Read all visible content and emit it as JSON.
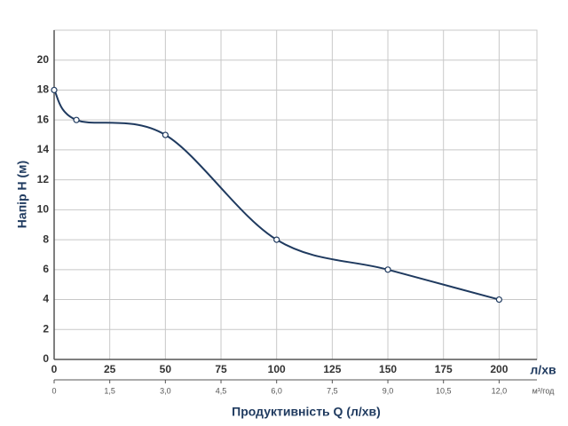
{
  "chart_data": {
    "type": "line",
    "ylabel": "Напір H (м)",
    "xlabel": "Продуктивність Q (л/хв)",
    "x_unit": "л/хв",
    "x2_unit": "м³/год",
    "x": [
      0,
      10,
      50,
      100,
      150,
      200
    ],
    "series": [
      {
        "name": "H",
        "color": "#1f3a5f",
        "values": [
          18,
          16,
          15,
          8,
          6,
          4
        ]
      }
    ],
    "xlim": [
      0,
      217
    ],
    "ylim": [
      0,
      22
    ],
    "xticks": [
      0,
      25,
      50,
      75,
      100,
      125,
      150,
      175,
      200
    ],
    "yticks": [
      0,
      2,
      4,
      6,
      8,
      10,
      12,
      14,
      16,
      18,
      20
    ],
    "x2lim": [
      0,
      13.02
    ],
    "x2ticks": [
      0,
      {
        "value": 1.5,
        "label": "1,5"
      },
      {
        "value": 3.0,
        "label": "3,0"
      },
      {
        "value": 4.5,
        "label": "4,5"
      },
      {
        "value": 6.0,
        "label": "6,0"
      },
      {
        "value": 7.5,
        "label": "7,5"
      },
      {
        "value": 9.0,
        "label": "9,0"
      },
      {
        "value": 10.5,
        "label": "10,5"
      },
      {
        "value": 12.0,
        "label": "12,0"
      }
    ],
    "grid": true
  }
}
